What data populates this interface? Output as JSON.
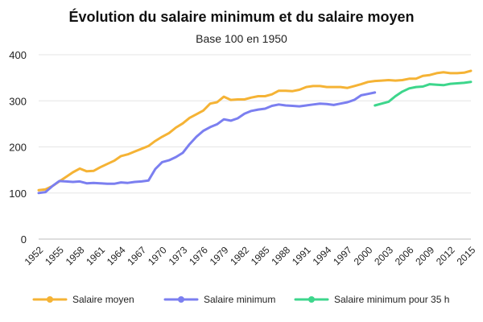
{
  "chart_data": {
    "type": "line",
    "title": "Évolution du salaire minimum et du salaire moyen",
    "subtitle": "Base 100 en 1950",
    "ylim": [
      0,
      400
    ],
    "yticks": [
      0,
      100,
      200,
      300,
      400
    ],
    "xlim": [
      1952,
      2015
    ],
    "xticks": [
      1952,
      1955,
      1958,
      1961,
      1964,
      1967,
      1970,
      1973,
      1976,
      1979,
      1982,
      1985,
      1988,
      1991,
      1994,
      1997,
      2000,
      2003,
      2006,
      2009,
      2012,
      2015
    ],
    "grid": true,
    "legend_position": "bottom",
    "series": [
      {
        "name": "Salaire moyen",
        "color": "#f5b335",
        "x": [
          1952,
          1953,
          1954,
          1955,
          1956,
          1957,
          1958,
          1959,
          1960,
          1961,
          1962,
          1963,
          1964,
          1965,
          1966,
          1967,
          1968,
          1969,
          1970,
          1971,
          1972,
          1973,
          1974,
          1975,
          1976,
          1977,
          1978,
          1979,
          1980,
          1981,
          1982,
          1983,
          1984,
          1985,
          1986,
          1987,
          1988,
          1989,
          1990,
          1991,
          1992,
          1993,
          1994,
          1995,
          1996,
          1997,
          1998,
          1999,
          2000,
          2001,
          2002,
          2003,
          2004,
          2005,
          2006,
          2007,
          2008,
          2009,
          2010,
          2011,
          2012,
          2013,
          2014,
          2015
        ],
        "values": [
          106,
          108,
          115,
          125,
          135,
          145,
          153,
          147,
          148,
          156,
          163,
          170,
          180,
          184,
          190,
          196,
          202,
          213,
          222,
          230,
          242,
          251,
          263,
          271,
          279,
          294,
          297,
          309,
          302,
          303,
          303,
          307,
          310,
          310,
          314,
          322,
          322,
          321,
          324,
          330,
          332,
          332,
          330,
          330,
          330,
          328,
          332,
          336,
          341,
          343,
          344,
          345,
          344,
          345,
          348,
          348,
          354,
          356,
          360,
          362,
          360,
          360,
          361,
          365
        ]
      },
      {
        "name": "Salaire minimum",
        "color": "#7b7ff0",
        "x": [
          1952,
          1953,
          1954,
          1955,
          1956,
          1957,
          1958,
          1959,
          1960,
          1961,
          1962,
          1963,
          1964,
          1965,
          1966,
          1967,
          1968,
          1969,
          1970,
          1971,
          1972,
          1973,
          1974,
          1975,
          1976,
          1977,
          1978,
          1979,
          1980,
          1981,
          1982,
          1983,
          1984,
          1985,
          1986,
          1987,
          1988,
          1989,
          1990,
          1991,
          1992,
          1993,
          1994,
          1995,
          1996,
          1997,
          1998,
          1999,
          2000,
          2001
        ],
        "values": [
          100,
          102,
          115,
          126,
          125,
          124,
          125,
          121,
          122,
          121,
          120,
          120,
          123,
          122,
          124,
          125,
          127,
          152,
          167,
          171,
          178,
          187,
          206,
          222,
          235,
          243,
          249,
          260,
          257,
          262,
          272,
          278,
          281,
          283,
          289,
          292,
          290,
          289,
          288,
          290,
          292,
          294,
          293,
          291,
          294,
          297,
          302,
          312,
          315,
          318
        ]
      },
      {
        "name": "Salaire minimum pour 35 h",
        "color": "#3dd68c",
        "x": [
          2001,
          2002,
          2003,
          2004,
          2005,
          2006,
          2007,
          2008,
          2009,
          2010,
          2011,
          2012,
          2013,
          2014,
          2015
        ],
        "values": [
          290,
          294,
          298,
          310,
          320,
          327,
          330,
          331,
          336,
          335,
          334,
          337,
          338,
          339,
          341
        ]
      }
    ]
  }
}
